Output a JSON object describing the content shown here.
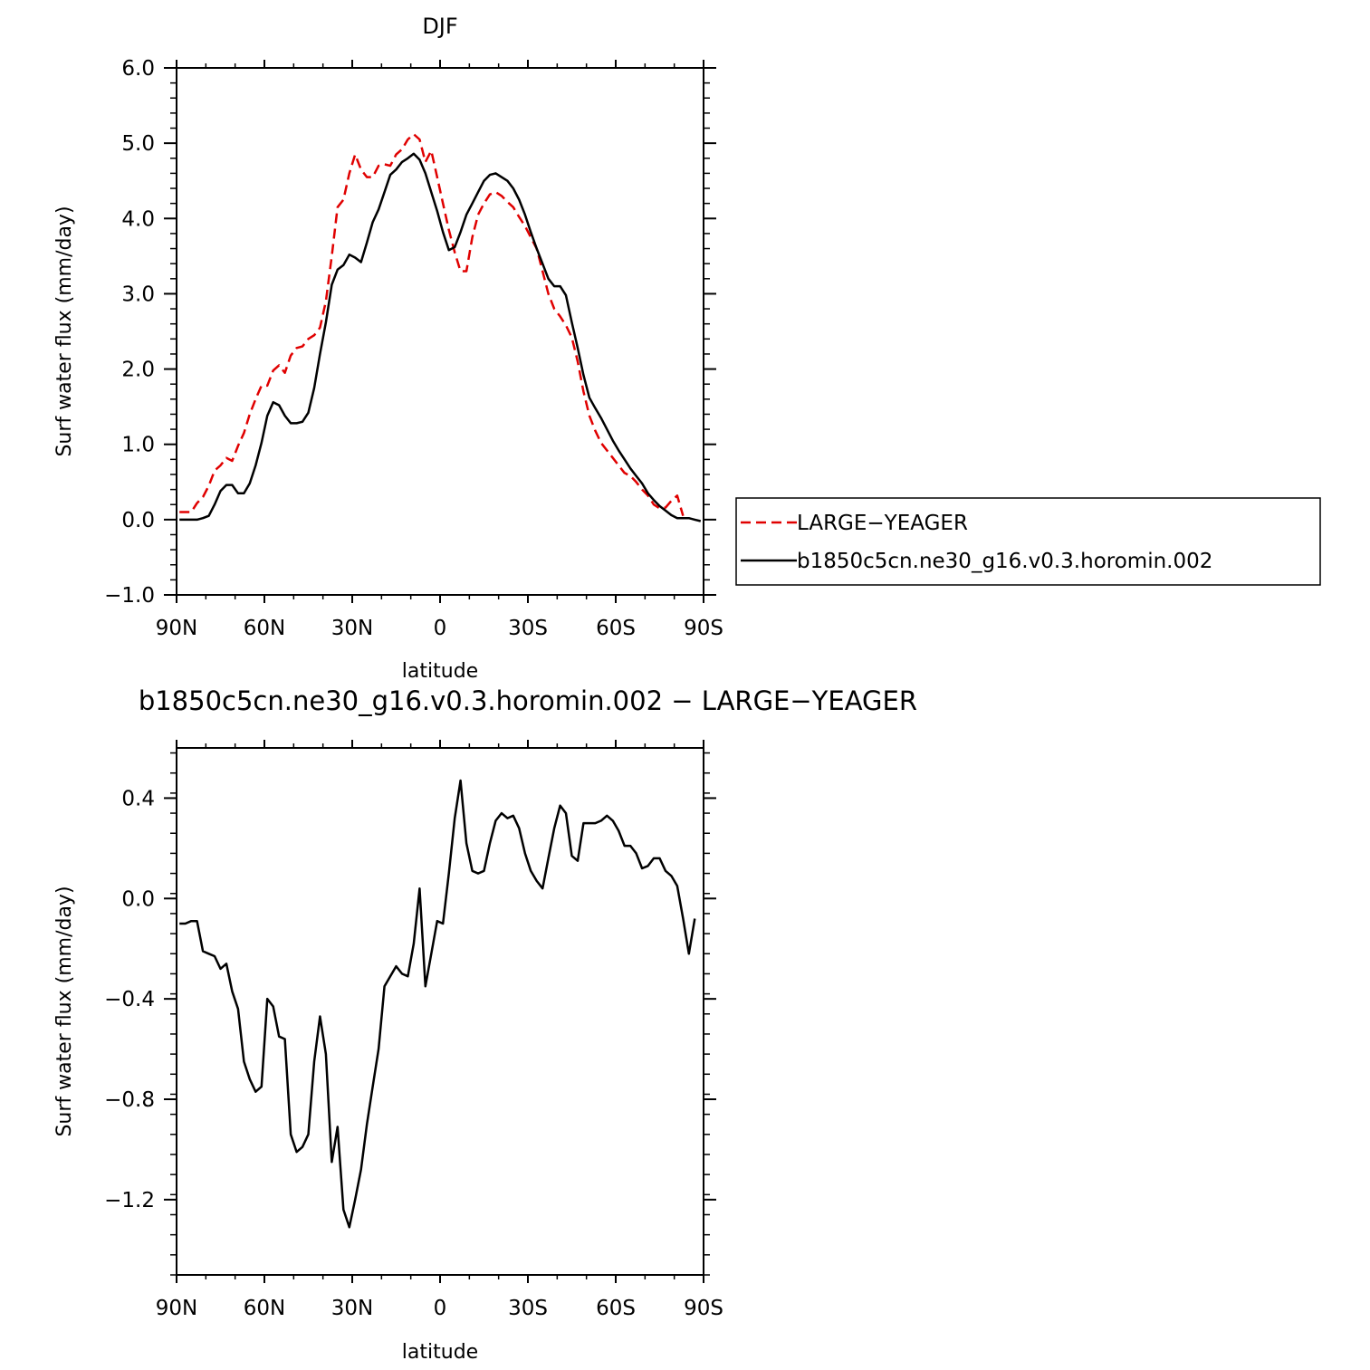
{
  "chart_data": [
    {
      "type": "line",
      "title": "DJF",
      "xlabel": "latitude",
      "ylabel": "Surf water flux (mm/day)",
      "xlim": [
        90,
        -90
      ],
      "ylim": [
        -1.0,
        6.0
      ],
      "x_ticks": [
        90,
        60,
        30,
        0,
        -30,
        -60,
        -90
      ],
      "x_tick_labels": [
        "90N",
        "60N",
        "30N",
        "0",
        "30S",
        "60S",
        "90S"
      ],
      "y_ticks": [
        -1.0,
        0.0,
        1.0,
        2.0,
        3.0,
        4.0,
        5.0,
        6.0
      ],
      "y_tick_labels": [
        "−1.0",
        "0.0",
        "1.0",
        "2.0",
        "3.0",
        "4.0",
        "5.0",
        "6.0"
      ],
      "legend_position": "right",
      "series": [
        {
          "name": "LARGE−YEAGER",
          "color": "#e00000",
          "dash": "dashed",
          "points": [
            [
              89,
              0.1
            ],
            [
              87,
              0.1
            ],
            [
              85,
              0.1
            ],
            [
              83,
              0.22
            ],
            [
              81,
              0.3
            ],
            [
              79,
              0.45
            ],
            [
              77,
              0.65
            ],
            [
              75,
              0.72
            ],
            [
              73,
              0.82
            ],
            [
              71,
              0.78
            ],
            [
              69,
              0.98
            ],
            [
              67,
              1.15
            ],
            [
              65,
              1.4
            ],
            [
              63,
              1.6
            ],
            [
              61,
              1.78
            ],
            [
              59,
              1.78
            ],
            [
              57,
              1.98
            ],
            [
              55,
              2.05
            ],
            [
              53,
              1.95
            ],
            [
              51,
              2.18
            ],
            [
              49,
              2.28
            ],
            [
              47,
              2.3
            ],
            [
              45,
              2.4
            ],
            [
              43,
              2.45
            ],
            [
              41,
              2.55
            ],
            [
              39,
              2.9
            ],
            [
              37,
              3.5
            ],
            [
              35,
              4.15
            ],
            [
              33,
              4.25
            ],
            [
              31,
              4.6
            ],
            [
              29,
              4.85
            ],
            [
              27,
              4.65
            ],
            [
              25,
              4.55
            ],
            [
              23,
              4.55
            ],
            [
              21,
              4.7
            ],
            [
              19,
              4.72
            ],
            [
              17,
              4.7
            ],
            [
              15,
              4.85
            ],
            [
              13,
              4.92
            ],
            [
              11,
              5.05
            ],
            [
              9,
              5.12
            ],
            [
              7,
              5.05
            ],
            [
              5,
              4.75
            ],
            [
              3,
              4.9
            ],
            [
              1,
              4.55
            ],
            [
              -1,
              4.2
            ],
            [
              -3,
              3.85
            ],
            [
              -5,
              3.55
            ],
            [
              -7,
              3.3
            ],
            [
              -9,
              3.3
            ],
            [
              -11,
              3.75
            ],
            [
              -13,
              4.05
            ],
            [
              -15,
              4.2
            ],
            [
              -17,
              4.32
            ],
            [
              -19,
              4.35
            ],
            [
              -21,
              4.3
            ],
            [
              -23,
              4.22
            ],
            [
              -25,
              4.15
            ],
            [
              -27,
              4.02
            ],
            [
              -29,
              3.9
            ],
            [
              -31,
              3.75
            ],
            [
              -33,
              3.6
            ],
            [
              -35,
              3.3
            ],
            [
              -37,
              3.0
            ],
            [
              -39,
              2.8
            ],
            [
              -41,
              2.7
            ],
            [
              -43,
              2.58
            ],
            [
              -45,
              2.42
            ],
            [
              -47,
              2.1
            ],
            [
              -49,
              1.7
            ],
            [
              -51,
              1.38
            ],
            [
              -53,
              1.18
            ],
            [
              -55,
              1.02
            ],
            [
              -57,
              0.92
            ],
            [
              -59,
              0.82
            ],
            [
              -61,
              0.72
            ],
            [
              -63,
              0.62
            ],
            [
              -65,
              0.58
            ],
            [
              -67,
              0.5
            ],
            [
              -69,
              0.4
            ],
            [
              -71,
              0.32
            ],
            [
              -73,
              0.2
            ],
            [
              -75,
              0.15
            ],
            [
              -77,
              0.16
            ],
            [
              -79,
              0.25
            ],
            [
              -81,
              0.32
            ],
            [
              -83,
              0.05
            ]
          ]
        },
        {
          "name": "b1850c5cn.ne30_g16.v0.3.horomin.002",
          "color": "#000000",
          "dash": "solid",
          "points": [
            [
              89,
              0.0
            ],
            [
              87,
              0.0
            ],
            [
              85,
              0.0
            ],
            [
              83,
              0.0
            ],
            [
              81,
              0.02
            ],
            [
              79,
              0.05
            ],
            [
              77,
              0.2
            ],
            [
              75,
              0.38
            ],
            [
              73,
              0.46
            ],
            [
              71,
              0.46
            ],
            [
              69,
              0.35
            ],
            [
              67,
              0.35
            ],
            [
              65,
              0.48
            ],
            [
              63,
              0.72
            ],
            [
              61,
              1.02
            ],
            [
              59,
              1.38
            ],
            [
              57,
              1.56
            ],
            [
              55,
              1.52
            ],
            [
              53,
              1.38
            ],
            [
              51,
              1.28
            ],
            [
              49,
              1.28
            ],
            [
              47,
              1.3
            ],
            [
              45,
              1.42
            ],
            [
              43,
              1.75
            ],
            [
              41,
              2.2
            ],
            [
              39,
              2.62
            ],
            [
              37,
              3.12
            ],
            [
              35,
              3.32
            ],
            [
              33,
              3.38
            ],
            [
              31,
              3.52
            ],
            [
              29,
              3.48
            ],
            [
              27,
              3.42
            ],
            [
              25,
              3.68
            ],
            [
              23,
              3.95
            ],
            [
              21,
              4.12
            ],
            [
              19,
              4.35
            ],
            [
              17,
              4.58
            ],
            [
              15,
              4.65
            ],
            [
              13,
              4.75
            ],
            [
              11,
              4.8
            ],
            [
              9,
              4.86
            ],
            [
              7,
              4.78
            ],
            [
              5,
              4.6
            ],
            [
              3,
              4.35
            ],
            [
              1,
              4.1
            ],
            [
              -1,
              3.82
            ],
            [
              -3,
              3.58
            ],
            [
              -5,
              3.62
            ],
            [
              -7,
              3.82
            ],
            [
              -9,
              4.05
            ],
            [
              -11,
              4.2
            ],
            [
              -13,
              4.35
            ],
            [
              -15,
              4.5
            ],
            [
              -17,
              4.58
            ],
            [
              -19,
              4.6
            ],
            [
              -21,
              4.55
            ],
            [
              -23,
              4.5
            ],
            [
              -25,
              4.4
            ],
            [
              -27,
              4.25
            ],
            [
              -29,
              4.05
            ],
            [
              -31,
              3.82
            ],
            [
              -33,
              3.6
            ],
            [
              -35,
              3.4
            ],
            [
              -37,
              3.2
            ],
            [
              -39,
              3.1
            ],
            [
              -41,
              3.1
            ],
            [
              -43,
              2.98
            ],
            [
              -45,
              2.62
            ],
            [
              -47,
              2.28
            ],
            [
              -49,
              1.92
            ],
            [
              -51,
              1.62
            ],
            [
              -53,
              1.48
            ],
            [
              -55,
              1.35
            ],
            [
              -57,
              1.2
            ],
            [
              -59,
              1.05
            ],
            [
              -61,
              0.92
            ],
            [
              -63,
              0.8
            ],
            [
              -65,
              0.68
            ],
            [
              -67,
              0.58
            ],
            [
              -69,
              0.48
            ],
            [
              -71,
              0.35
            ],
            [
              -73,
              0.26
            ],
            [
              -75,
              0.18
            ],
            [
              -77,
              0.12
            ],
            [
              -79,
              0.06
            ],
            [
              -81,
              0.02
            ],
            [
              -83,
              0.02
            ],
            [
              -85,
              0.02
            ],
            [
              -87,
              0.0
            ],
            [
              -89,
              -0.02
            ]
          ]
        }
      ]
    },
    {
      "type": "line",
      "title": "b1850c5cn.ne30_g16.v0.3.horomin.002 − LARGE−YEAGER",
      "xlabel": "latitude",
      "ylabel": "Surf water flux (mm/day)",
      "xlim": [
        90,
        -90
      ],
      "ylim": [
        -1.5,
        0.6
      ],
      "x_ticks": [
        90,
        60,
        30,
        0,
        -30,
        -60,
        -90
      ],
      "x_tick_labels": [
        "90N",
        "60N",
        "30N",
        "0",
        "30S",
        "60S",
        "90S"
      ],
      "y_ticks": [
        -1.2,
        -0.8,
        -0.4,
        0.0,
        0.4
      ],
      "y_tick_labels": [
        "−1.2",
        "−0.8",
        "−0.4",
        "0.0",
        "0.4"
      ],
      "series": [
        {
          "color": "#000000",
          "dash": "solid",
          "points": [
            [
              89,
              -0.1
            ],
            [
              87,
              -0.1
            ],
            [
              85,
              -0.09
            ],
            [
              83,
              -0.09
            ],
            [
              81,
              -0.21
            ],
            [
              79,
              -0.22
            ],
            [
              77,
              -0.23
            ],
            [
              75,
              -0.28
            ],
            [
              73,
              -0.26
            ],
            [
              71,
              -0.37
            ],
            [
              69,
              -0.44
            ],
            [
              67,
              -0.65
            ],
            [
              65,
              -0.72
            ],
            [
              63,
              -0.77
            ],
            [
              61,
              -0.75
            ],
            [
              59,
              -0.4
            ],
            [
              57,
              -0.43
            ],
            [
              55,
              -0.55
            ],
            [
              53,
              -0.56
            ],
            [
              51,
              -0.94
            ],
            [
              49,
              -1.01
            ],
            [
              47,
              -0.99
            ],
            [
              45,
              -0.94
            ],
            [
              43,
              -0.65
            ],
            [
              41,
              -0.47
            ],
            [
              39,
              -0.62
            ],
            [
              37,
              -1.05
            ],
            [
              35,
              -0.91
            ],
            [
              33,
              -1.24
            ],
            [
              31,
              -1.31
            ],
            [
              29,
              -1.2
            ],
            [
              27,
              -1.08
            ],
            [
              25,
              -0.9
            ],
            [
              23,
              -0.75
            ],
            [
              21,
              -0.6
            ],
            [
              19,
              -0.35
            ],
            [
              17,
              -0.31
            ],
            [
              15,
              -0.27
            ],
            [
              13,
              -0.3
            ],
            [
              11,
              -0.31
            ],
            [
              9,
              -0.18
            ],
            [
              7,
              0.04
            ],
            [
              5,
              -0.35
            ],
            [
              3,
              -0.22
            ],
            [
              1,
              -0.09
            ],
            [
              -1,
              -0.1
            ],
            [
              -3,
              0.1
            ],
            [
              -5,
              0.32
            ],
            [
              -7,
              0.47
            ],
            [
              -9,
              0.22
            ],
            [
              -11,
              0.11
            ],
            [
              -13,
              0.1
            ],
            [
              -15,
              0.11
            ],
            [
              -17,
              0.22
            ],
            [
              -19,
              0.31
            ],
            [
              -21,
              0.34
            ],
            [
              -23,
              0.32
            ],
            [
              -25,
              0.33
            ],
            [
              -27,
              0.28
            ],
            [
              -29,
              0.18
            ],
            [
              -31,
              0.11
            ],
            [
              -33,
              0.07
            ],
            [
              -35,
              0.04
            ],
            [
              -37,
              0.16
            ],
            [
              -39,
              0.28
            ],
            [
              -41,
              0.37
            ],
            [
              -43,
              0.34
            ],
            [
              -45,
              0.17
            ],
            [
              -47,
              0.15
            ],
            [
              -49,
              0.3
            ],
            [
              -51,
              0.3
            ],
            [
              -53,
              0.3
            ],
            [
              -55,
              0.31
            ],
            [
              -57,
              0.33
            ],
            [
              -59,
              0.31
            ],
            [
              -61,
              0.27
            ],
            [
              -63,
              0.21
            ],
            [
              -65,
              0.21
            ],
            [
              -67,
              0.18
            ],
            [
              -69,
              0.12
            ],
            [
              -71,
              0.13
            ],
            [
              -73,
              0.16
            ],
            [
              -75,
              0.16
            ],
            [
              -77,
              0.11
            ],
            [
              -79,
              0.09
            ],
            [
              -81,
              0.05
            ],
            [
              -83,
              -0.08
            ],
            [
              -85,
              -0.22
            ],
            [
              -87,
              -0.08
            ]
          ]
        }
      ]
    }
  ]
}
